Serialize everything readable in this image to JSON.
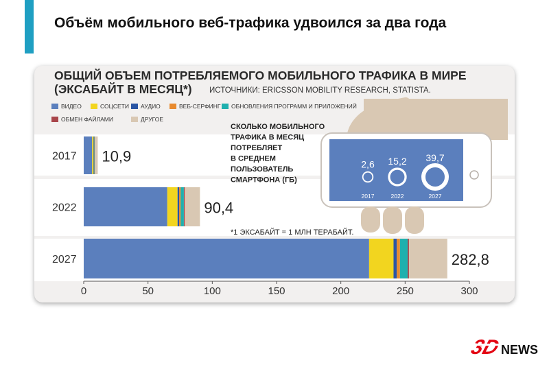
{
  "page": {
    "headline": "Объём мобильного веб-трафика удвоился за два года"
  },
  "logo": {
    "mark": "3D",
    "word": "NEWS"
  },
  "colors": {
    "accent": "#1f9fc2",
    "logo_red": "#e30613"
  },
  "chart_data": {
    "type": "bar",
    "orientation": "horizontal",
    "stacked": true,
    "title_line1": "ОБЩИЙ ОБЪЕМ ПОТРЕБЛЯЕМОГО МОБИЛЬНОГО ТРАФИКА В МИРЕ",
    "title_line2": "(ЭКСАБАЙТ В МЕСЯЦ*)",
    "sources": "ИСТОЧНИКИ: ERICSSON MOBILITY RESEARCH, STATISTA.",
    "footnote": "*1 ЭКСАБАЙТ = 1 МЛН ТЕРАБАЙТ.",
    "categories": [
      "2017",
      "2022",
      "2027"
    ],
    "totals": [
      "10,9",
      "90,4",
      "282,8"
    ],
    "series": [
      {
        "name": "ВИДЕО",
        "color": "#5b7fbd",
        "values": [
          6.5,
          65,
          222
        ]
      },
      {
        "name": "СОЦСЕТИ",
        "color": "#f2d51f",
        "values": [
          0.9,
          8,
          19
        ]
      },
      {
        "name": "АУДИО",
        "color": "#2a55a4",
        "values": [
          0.2,
          1.2,
          2.5
        ]
      },
      {
        "name": "ВЕБ-СЕРФИНГ",
        "color": "#e88a2e",
        "values": [
          0.2,
          1.2,
          2.5
        ]
      },
      {
        "name": "ОБНОВЛЕНИЯ ПРОГРАММ И ПРИЛОЖЕНИЙ",
        "color": "#1fb0ae",
        "values": [
          0.5,
          2.5,
          6
        ]
      },
      {
        "name": "ОБМЕН ФАЙЛАМИ",
        "color": "#a8454a",
        "values": [
          0.2,
          0.7,
          1
        ]
      },
      {
        "name": "ДРУГОЕ",
        "color": "#d9c8b3",
        "values": [
          2.4,
          11.8,
          29.8
        ]
      }
    ],
    "xlim": [
      0,
      300
    ],
    "xticks": [
      "0",
      "50",
      "100",
      "150",
      "200",
      "250",
      "300"
    ],
    "legend_position": "top-left",
    "inset": {
      "label_lines": [
        "СКОЛЬКО МОБИЛЬНОГО",
        "ТРАФИКА В МЕСЯЦ",
        "ПОТРЕБЛЯЕТ",
        "В СРЕДНЕМ",
        "ПОЛЬЗОВАТЕЛЬ",
        "СМАРТФОНА (ГБ)"
      ],
      "years": [
        "2017",
        "2022",
        "2027"
      ],
      "values": [
        2.6,
        15.2,
        39.7
      ],
      "value_labels": [
        "2,6",
        "15,2",
        "39,7"
      ],
      "screen_color": "#5b7fbd",
      "hand_color": "#d9c8b3"
    }
  }
}
